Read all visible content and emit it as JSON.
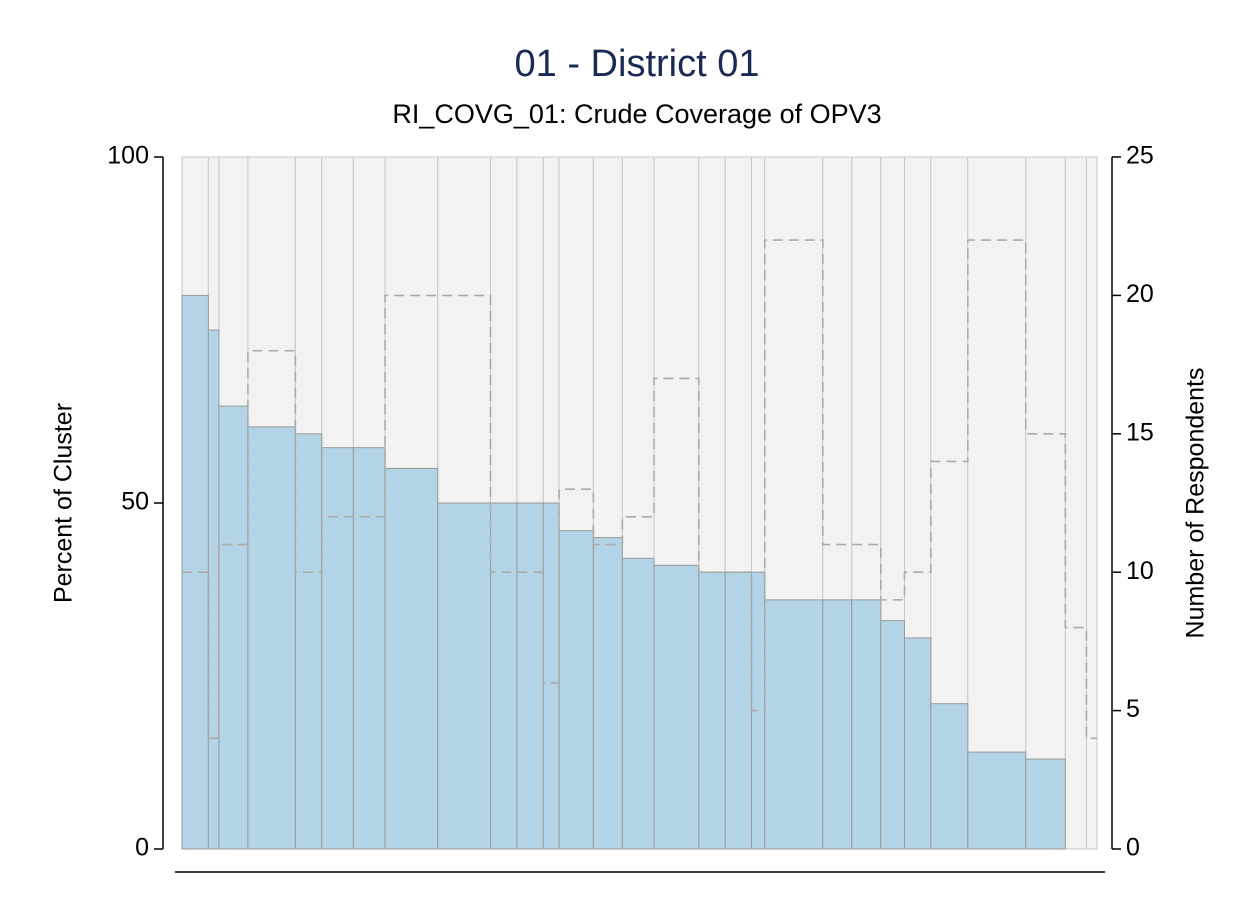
{
  "chart_data": {
    "type": "organ_pipe",
    "title": "01 - District 01",
    "subtitle": "RI_COVG_01: Crude Coverage of OPV3",
    "ylabel": "Percent of Cluster",
    "y2label": "Number of Respondents",
    "values": [
      80,
      75,
      64,
      61,
      60,
      58,
      58,
      55,
      50,
      50,
      50,
      50,
      46,
      45,
      42,
      41,
      40,
      40,
      40,
      36,
      36,
      36,
      33,
      30.5,
      21,
      14,
      13,
      0,
      0
    ],
    "respondents": [
      10,
      4,
      11,
      18,
      10,
      12,
      12,
      20,
      20,
      10,
      10,
      6,
      13,
      11,
      12,
      17,
      10,
      10,
      5,
      22,
      11,
      11,
      9,
      10,
      14,
      22,
      15,
      8,
      4
    ],
    "color": "#b3d4e6",
    "background_color": "#f2f2f2",
    "line_color": "#aaaaaa",
    "ylim": [
      0,
      100
    ],
    "yticks": [
      0,
      50,
      100
    ],
    "y2lim": [
      0,
      25
    ],
    "y2ticks": [
      0,
      5,
      10,
      15,
      20,
      25
    ]
  }
}
